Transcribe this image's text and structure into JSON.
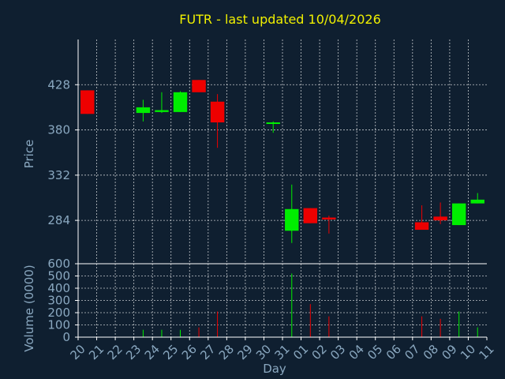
{
  "chart_data": {
    "type": "candlestick",
    "title": "FUTR - last updated 10/04/2026",
    "xlabel": "Day",
    "colors": {
      "background": "#0f1f30",
      "title": "#f0f000",
      "text": "#8aa8c0",
      "grid": "#ffffff",
      "axis": "#ffffff",
      "up": "#00ee00",
      "down": "#ee0000"
    },
    "x_ticks": [
      "20",
      "21",
      "22",
      "23",
      "24",
      "25",
      "26",
      "27",
      "28",
      "29",
      "30",
      "31",
      "01",
      "02",
      "03",
      "04",
      "05",
      "06",
      "07",
      "08",
      "09",
      "10",
      "11"
    ],
    "price_panel": {
      "ylabel": "Price",
      "ylim": [
        238,
        476
      ],
      "y_ticks": [
        284,
        332,
        380,
        428
      ],
      "grid": true
    },
    "volume_panel": {
      "ylabel": "Volume (0000)",
      "ylim": [
        0,
        600
      ],
      "y_ticks": [
        0,
        100,
        200,
        300,
        400,
        500,
        600
      ],
      "grid": true
    },
    "candles": [
      {
        "day": "20",
        "open": 422,
        "high": 422,
        "low": 397,
        "close": 397,
        "volume": 0
      },
      {
        "day": "23",
        "open": 398,
        "high": 412,
        "low": 389,
        "close": 404,
        "volume": 60
      },
      {
        "day": "24",
        "open": 399,
        "high": 420,
        "low": 398,
        "close": 401,
        "volume": 60
      },
      {
        "day": "25",
        "open": 399,
        "high": 421,
        "low": 399,
        "close": 420,
        "volume": 60
      },
      {
        "day": "26",
        "open": 433,
        "high": 433,
        "low": 420,
        "close": 420,
        "volume": 80
      },
      {
        "day": "27",
        "open": 410,
        "high": 418,
        "low": 361,
        "close": 388,
        "volume": 210
      },
      {
        "day": "30",
        "open": 387,
        "high": 389,
        "low": 377,
        "close": 388,
        "volume": 0
      },
      {
        "day": "31",
        "open": 273,
        "high": 322,
        "low": 260,
        "close": 296,
        "volume": 520
      },
      {
        "day": "01",
        "open": 297,
        "high": 297,
        "low": 281,
        "close": 281,
        "volume": 270
      },
      {
        "day": "02",
        "open": 287,
        "high": 289,
        "low": 270,
        "close": 285,
        "volume": 170
      },
      {
        "day": "07",
        "open": 282,
        "high": 300,
        "low": 274,
        "close": 274,
        "volume": 170
      },
      {
        "day": "08",
        "open": 288,
        "high": 303,
        "low": 280,
        "close": 284,
        "volume": 150
      },
      {
        "day": "09",
        "open": 279,
        "high": 302,
        "low": 279,
        "close": 302,
        "volume": 210
      },
      {
        "day": "10",
        "open": 302,
        "high": 313,
        "low": 302,
        "close": 306,
        "volume": 80
      }
    ]
  }
}
